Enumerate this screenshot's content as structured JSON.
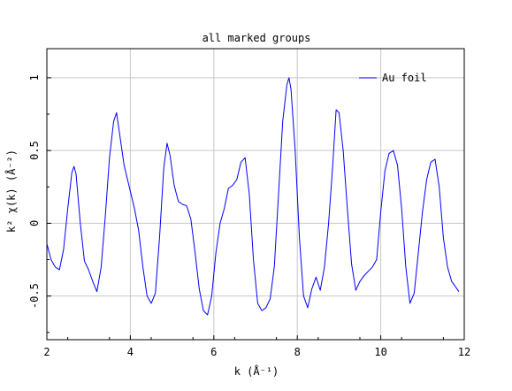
{
  "chart_data": {
    "type": "line",
    "title": "all marked groups",
    "xlabel": "k (Å⁻¹)",
    "ylabel": "k² χ(k) (Å⁻²)",
    "xlim": [
      2,
      12
    ],
    "ylim": [
      -0.8,
      1.2
    ],
    "grid": true,
    "legend_position": "top-right",
    "x_ticks": [
      "2",
      "4",
      "6",
      "8",
      "10",
      "12"
    ],
    "y_ticks": [
      "-0.5",
      "0",
      "0.5",
      "1"
    ],
    "series": [
      {
        "name": "Au foil",
        "color": "#0000ff",
        "x": [
          2.0,
          2.1,
          2.2,
          2.3,
          2.4,
          2.5,
          2.6,
          2.65,
          2.7,
          2.8,
          2.9,
          3.0,
          3.1,
          3.2,
          3.3,
          3.4,
          3.5,
          3.6,
          3.67,
          3.75,
          3.85,
          4.0,
          4.1,
          4.2,
          4.3,
          4.4,
          4.5,
          4.6,
          4.7,
          4.8,
          4.88,
          4.95,
          5.05,
          5.15,
          5.25,
          5.35,
          5.45,
          5.55,
          5.65,
          5.75,
          5.85,
          5.95,
          6.05,
          6.15,
          6.25,
          6.35,
          6.45,
          6.55,
          6.65,
          6.75,
          6.85,
          6.95,
          7.05,
          7.15,
          7.25,
          7.35,
          7.45,
          7.55,
          7.65,
          7.75,
          7.8,
          7.85,
          7.95,
          8.05,
          8.15,
          8.25,
          8.35,
          8.45,
          8.55,
          8.65,
          8.75,
          8.85,
          8.93,
          9.0,
          9.1,
          9.2,
          9.3,
          9.4,
          9.5,
          9.6,
          9.7,
          9.8,
          9.9,
          10.0,
          10.1,
          10.2,
          10.3,
          10.4,
          10.5,
          10.6,
          10.7,
          10.8,
          10.9,
          11.0,
          11.1,
          11.2,
          11.3,
          11.4,
          11.5,
          11.6,
          11.7,
          11.8,
          11.87
        ],
        "y": [
          -0.14,
          -0.25,
          -0.3,
          -0.32,
          -0.18,
          0.1,
          0.35,
          0.39,
          0.34,
          0.0,
          -0.26,
          -0.32,
          -0.4,
          -0.47,
          -0.3,
          0.05,
          0.45,
          0.7,
          0.76,
          0.6,
          0.4,
          0.22,
          0.1,
          -0.05,
          -0.3,
          -0.5,
          -0.55,
          -0.48,
          -0.1,
          0.38,
          0.55,
          0.47,
          0.26,
          0.15,
          0.13,
          0.12,
          0.03,
          -0.2,
          -0.45,
          -0.6,
          -0.63,
          -0.5,
          -0.2,
          0.0,
          0.1,
          0.24,
          0.26,
          0.3,
          0.42,
          0.45,
          0.2,
          -0.25,
          -0.55,
          -0.6,
          -0.58,
          -0.52,
          -0.3,
          0.2,
          0.7,
          0.95,
          1.0,
          0.92,
          0.5,
          -0.1,
          -0.5,
          -0.58,
          -0.45,
          -0.37,
          -0.46,
          -0.3,
          0.0,
          0.4,
          0.78,
          0.76,
          0.5,
          0.1,
          -0.28,
          -0.46,
          -0.4,
          -0.36,
          -0.33,
          -0.3,
          -0.25,
          0.08,
          0.36,
          0.48,
          0.5,
          0.4,
          0.1,
          -0.3,
          -0.55,
          -0.48,
          -0.2,
          0.08,
          0.3,
          0.42,
          0.44,
          0.25,
          -0.1,
          -0.3,
          -0.4,
          -0.44,
          -0.47
        ]
      }
    ]
  }
}
